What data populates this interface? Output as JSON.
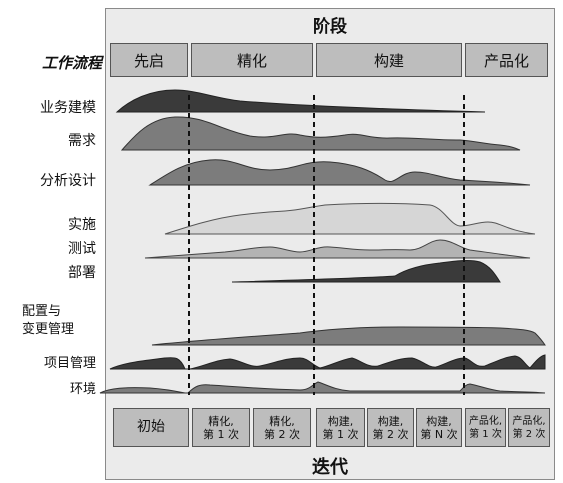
{
  "phases_title": "阶段",
  "phases": [
    {
      "label": "先启"
    },
    {
      "label": "精化"
    },
    {
      "label": "构建"
    },
    {
      "label": "产品化"
    }
  ],
  "workflow_header": "工作流程",
  "disciplines": [
    {
      "label": "业务建模"
    },
    {
      "label": "需求"
    },
    {
      "label": "分析设计"
    },
    {
      "label": "实施"
    },
    {
      "label": "测试"
    },
    {
      "label": "部署"
    },
    {
      "label": "配置与\n变更管理"
    },
    {
      "label": "项目管理"
    },
    {
      "label": "环境"
    }
  ],
  "iterations": [
    {
      "label": "初始"
    },
    {
      "label": "精化,\n第 1 次"
    },
    {
      "label": "精化,\n第 2 次"
    },
    {
      "label": "构建,\n第 1 次"
    },
    {
      "label": "构建,\n第 2 次"
    },
    {
      "label": "构建,\n第 N 次"
    },
    {
      "label": "产品化,\n第 1 次"
    },
    {
      "label": "产品化,\n第 2 次"
    }
  ],
  "iterations_title": "迭代",
  "colors": {
    "dark": "#3a3a3a",
    "medium": "#7c7c7c",
    "light": "#d6d6d6",
    "box": "#bdbdbd"
  }
}
